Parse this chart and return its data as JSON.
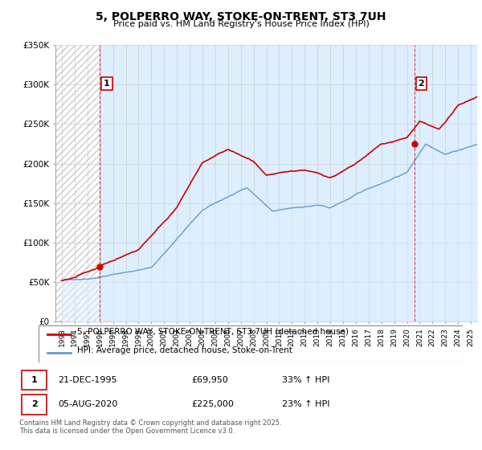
{
  "title": "5, POLPERRO WAY, STOKE-ON-TRENT, ST3 7UH",
  "subtitle": "Price paid vs. HM Land Registry's House Price Index (HPI)",
  "legend_line1": "5, POLPERRO WAY, STOKE-ON-TRENT, ST3 7UH (detached house)",
  "legend_line2": "HPI: Average price, detached house, Stoke-on-Trent",
  "footer": "Contains HM Land Registry data © Crown copyright and database right 2025.\nThis data is licensed under the Open Government Licence v3.0.",
  "annotation1_label": "1",
  "annotation1_date": "21-DEC-1995",
  "annotation1_price": "£69,950",
  "annotation1_hpi": "33% ↑ HPI",
  "annotation2_label": "2",
  "annotation2_date": "05-AUG-2020",
  "annotation2_price": "£225,000",
  "annotation2_hpi": "23% ↑ HPI",
  "sale1_year": 1995.97,
  "sale1_price": 69950,
  "sale2_year": 2020.58,
  "sale2_price": 225000,
  "price_line_color": "#cc0000",
  "hpi_line_color": "#6699cc",
  "hpi_fill_color": "#ddeeff",
  "hatch_color": "#cccccc",
  "grid_color": "#cccccc",
  "annotation_box_color": "#cc0000",
  "ylim_min": 0,
  "ylim_max": 350000,
  "ytick_values": [
    0,
    50000,
    100000,
    150000,
    200000,
    250000,
    300000,
    350000
  ],
  "ytick_labels": [
    "£0",
    "£50K",
    "£100K",
    "£150K",
    "£200K",
    "£250K",
    "£300K",
    "£350K"
  ],
  "xlim_min": 1992.5,
  "xlim_max": 2025.5,
  "xtick_years": [
    1993,
    1994,
    1995,
    1996,
    1997,
    1998,
    1999,
    2000,
    2001,
    2002,
    2003,
    2004,
    2005,
    2006,
    2007,
    2008,
    2009,
    2010,
    2011,
    2012,
    2013,
    2014,
    2015,
    2016,
    2017,
    2018,
    2019,
    2020,
    2021,
    2022,
    2023,
    2024,
    2025
  ],
  "hatch_end_year": 1995.97
}
